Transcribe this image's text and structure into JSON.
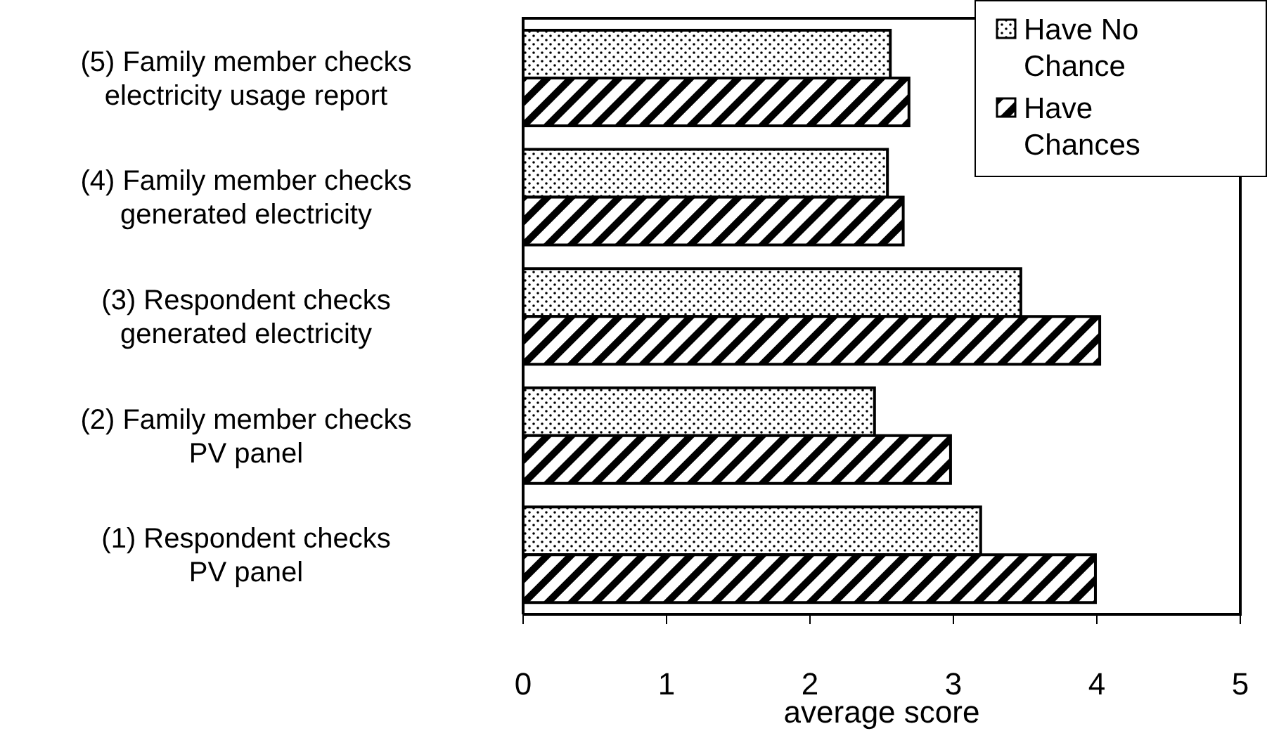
{
  "chart_data": {
    "type": "bar",
    "orientation": "horizontal",
    "xlabel": "average score",
    "categories": [
      "(5) Family member checks\nelectricity usage report",
      "(4) Family member checks\ngenerated electricity",
      "(3) Respondent checks\ngenerated electricity",
      "(2) Family member checks\nPV panel",
      "(1) Respondent checks\nPV panel"
    ],
    "series": [
      {
        "name": "Have No Chance",
        "color": "#000000",
        "values": [
          2.56,
          2.54,
          3.47,
          2.45,
          3.19
        ]
      },
      {
        "name": "Have Chances",
        "color": "#000000",
        "values": [
          2.69,
          2.65,
          4.02,
          2.98,
          3.99
        ]
      }
    ],
    "xlim": [
      0,
      5
    ],
    "xticks": [
      0,
      1,
      2,
      3,
      4,
      5
    ],
    "legend": "top right"
  }
}
